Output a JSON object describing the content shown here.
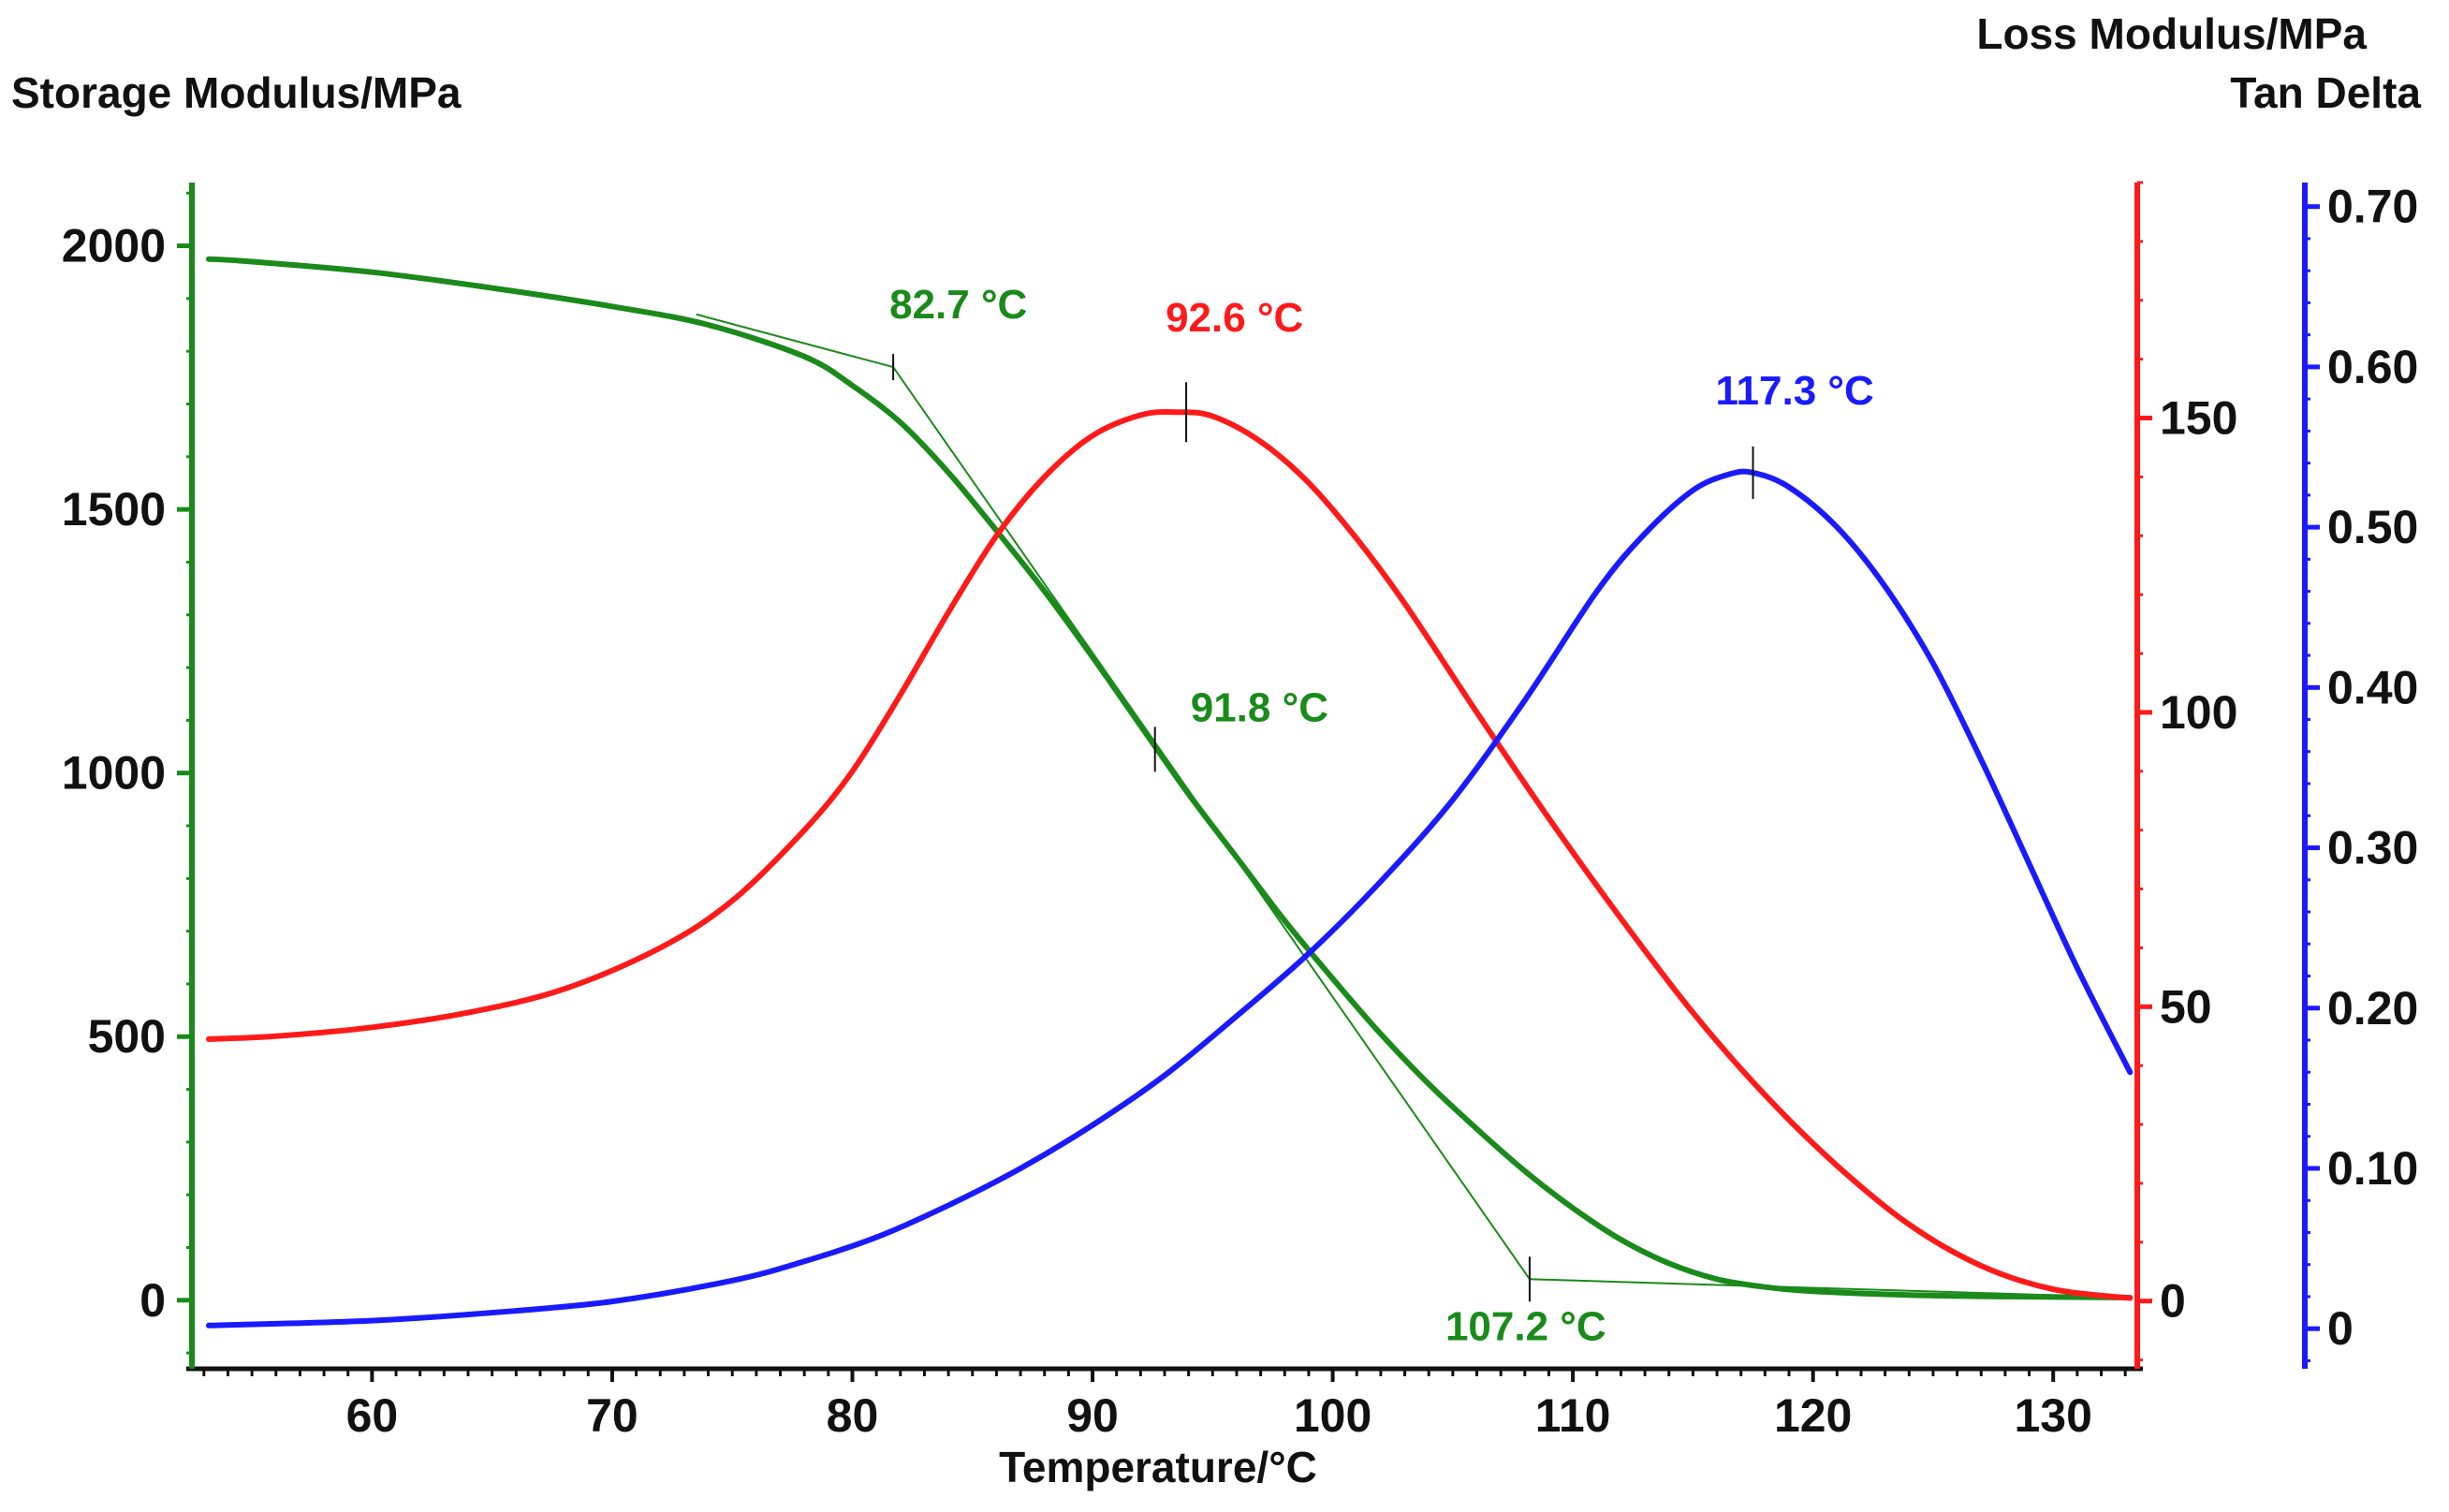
{
  "chart_data": {
    "type": "line",
    "xlabel": "Temperature/°C",
    "x_ticks": [
      60,
      70,
      80,
      90,
      100,
      110,
      120,
      130
    ],
    "xlim": [
      52.5,
      133.5
    ],
    "axes": [
      {
        "id": "storage",
        "label": "Storage Modulus/MPa",
        "color": "#1a8a1a",
        "ylim": [
          -130,
          2120
        ],
        "ticks": [
          0,
          500,
          1000,
          1500,
          2000
        ]
      },
      {
        "id": "loss",
        "label": "Loss Modulus/MPa",
        "color": "#ff1a1a",
        "ylim": [
          -11.5,
          190
        ],
        "ticks": [
          0,
          50,
          100,
          150
        ]
      },
      {
        "id": "tand",
        "label": "Tan Delta",
        "color": "#1a1aff",
        "ylim": [
          -0.025,
          0.715
        ],
        "ticks": [
          0,
          0.1,
          0.2,
          0.3,
          0.4,
          0.5,
          0.6,
          0.7
        ],
        "tick_labels": [
          "0",
          "0.10",
          "0.20",
          "0.30",
          "0.40",
          "0.50",
          "0.60",
          "0.70"
        ]
      }
    ],
    "series": [
      {
        "name": "Storage Modulus",
        "axis": "storage",
        "color": "#1a8a1a",
        "x": [
          53.2,
          55,
          60,
          65,
          70,
          74,
          78,
          80,
          82,
          84,
          86,
          88,
          90,
          92,
          94,
          96,
          98,
          100,
          102,
          104,
          106,
          108,
          110,
          112,
          114,
          116,
          118,
          120,
          124,
          128,
          133.2
        ],
        "y": [
          1975,
          1970,
          1950,
          1920,
          1885,
          1850,
          1790,
          1735,
          1665,
          1570,
          1460,
          1345,
          1220,
          1090,
          960,
          840,
          720,
          610,
          505,
          410,
          325,
          245,
          175,
          115,
          70,
          40,
          25,
          17,
          10,
          7,
          5
        ]
      },
      {
        "name": "Loss Modulus",
        "axis": "loss",
        "color": "#ff1a1a",
        "x": [
          53.2,
          56,
          60,
          64,
          68,
          72,
          75,
          78,
          80,
          82,
          84,
          86,
          88,
          90,
          92,
          93.5,
          95,
          97,
          99,
          101,
          103,
          106,
          109,
          112,
          115,
          118,
          121,
          124,
          127,
          130,
          133.2
        ],
        "y": [
          44.5,
          45,
          46.5,
          49,
          53,
          60,
          68,
          80,
          90,
          103,
          117,
          130,
          140,
          147,
          150.5,
          151,
          150.3,
          146,
          139,
          129.5,
          118.5,
          100,
          82,
          65,
          49,
          35,
          23,
          13,
          6,
          2,
          0.5
        ]
      },
      {
        "name": "Tan Delta",
        "axis": "tand",
        "color": "#1a1aff",
        "x": [
          53.2,
          60,
          65,
          70,
          75,
          78,
          81,
          84,
          87,
          90,
          93,
          96,
          99,
          102,
          105,
          108,
          111,
          113,
          115,
          116.5,
          117.5,
          119,
          121,
          123,
          125,
          127,
          129,
          131,
          133.2
        ],
        "y": [
          0.002,
          0.005,
          0.01,
          0.017,
          0.03,
          0.042,
          0.057,
          0.077,
          0.1,
          0.127,
          0.158,
          0.195,
          0.234,
          0.279,
          0.33,
          0.392,
          0.46,
          0.496,
          0.523,
          0.533,
          0.534,
          0.525,
          0.5,
          0.463,
          0.415,
          0.355,
          0.29,
          0.225,
          0.16
        ]
      }
    ],
    "annotations": [
      {
        "text": "82.7 °C",
        "series": "Storage Modulus",
        "x": 81.7,
        "y": 1770,
        "color": "#1a8a1a",
        "kind": "onset"
      },
      {
        "text": "91.8 °C",
        "series": "Storage Modulus",
        "x": 92.6,
        "y": 1045,
        "color": "#1a8a1a",
        "kind": "midpoint"
      },
      {
        "text": "107.2 °C",
        "series": "Storage Modulus",
        "x": 108.2,
        "y": 40,
        "color": "#1a8a1a",
        "kind": "endset"
      },
      {
        "text": "92.6 °C",
        "series": "Loss Modulus",
        "x": 93.9,
        "y": 151,
        "color": "#ff1a1a",
        "kind": "peak"
      },
      {
        "text": "117.3 °C",
        "series": "Tan Delta",
        "x": 117.5,
        "y": 0.534,
        "color": "#1a1aff",
        "kind": "peak"
      }
    ]
  }
}
